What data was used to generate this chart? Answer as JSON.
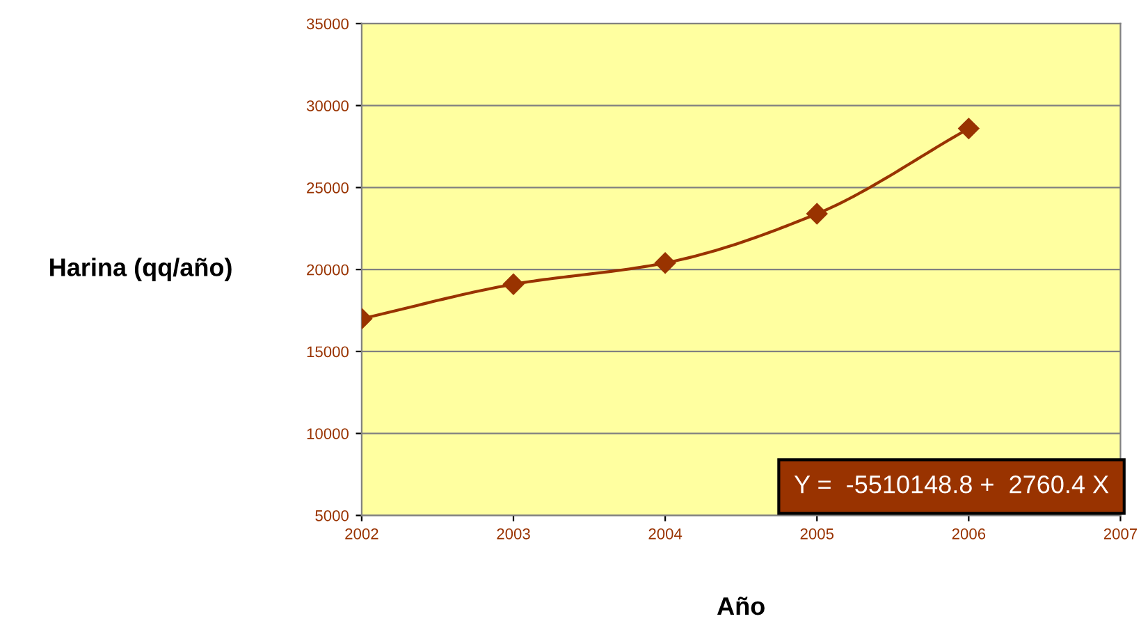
{
  "chart_data": {
    "type": "line",
    "xlabel": "Año",
    "ylabel": "Harina (qq/año)",
    "x": [
      2002,
      2003,
      2004,
      2005,
      2006
    ],
    "series": [
      {
        "color": "#993300",
        "values": [
          17000,
          19100,
          20400,
          23400,
          28600
        ]
      }
    ],
    "xlim": [
      2002,
      2007
    ],
    "xticks": [
      2002,
      2003,
      2004,
      2005,
      2006,
      2007
    ],
    "ylim": [
      5000,
      35000
    ],
    "yticks": [
      5000,
      10000,
      15000,
      20000,
      25000,
      30000,
      35000
    ],
    "grid": "y",
    "marker": "diamond",
    "line_style": "solid",
    "annotations": [
      "Y =  -5510148.8 +  2760.4 X"
    ]
  }
}
